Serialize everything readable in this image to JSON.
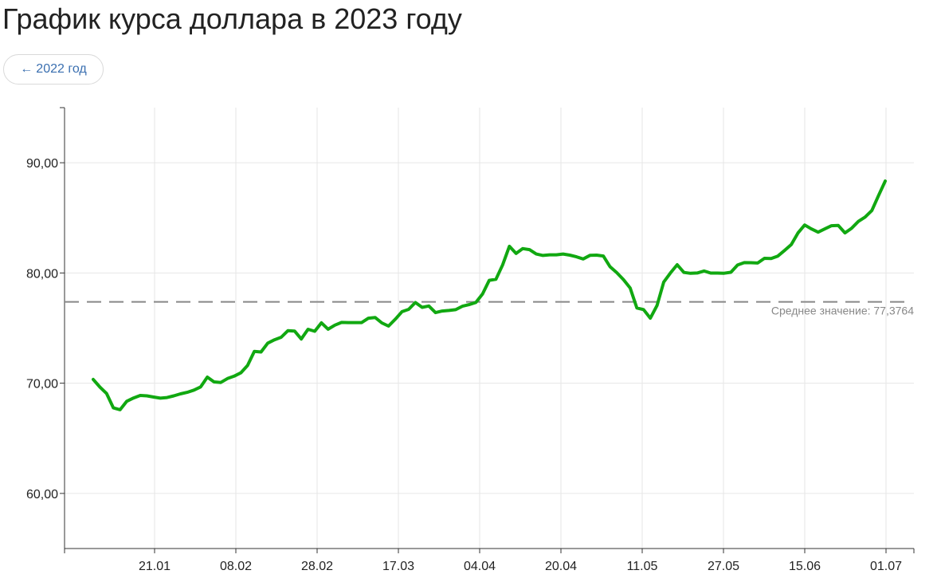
{
  "page": {
    "title": "График курса доллара в 2023 году",
    "back_label": "2022 год",
    "back_arrow": "←"
  },
  "chart_data": {
    "type": "line",
    "title": "",
    "xlabel": "",
    "ylabel": "",
    "ylim": [
      55,
      95
    ],
    "yticks": [
      60,
      70,
      80,
      90
    ],
    "ytick_labels": [
      "60,00",
      "70,00",
      "80,00",
      "90,00"
    ],
    "xticks": [
      "21.01",
      "08.02",
      "28.02",
      "17.03",
      "04.04",
      "20.04",
      "11.05",
      "27.05",
      "15.06",
      "01.07"
    ],
    "grid": true,
    "line_color": "#11a811",
    "average": {
      "value": 77.3764,
      "label": "Среднее значение: 77,3764"
    },
    "series": [
      {
        "values": [
          70.34,
          69.65,
          69.06,
          67.76,
          67.59,
          68.36,
          68.66,
          68.89,
          68.85,
          68.74,
          68.64,
          68.7,
          68.85,
          69.03,
          69.17,
          69.37,
          69.66,
          70.55,
          70.12,
          70.07,
          70.42,
          70.64,
          70.94,
          71.61,
          72.89,
          72.83,
          73.63,
          73.94,
          74.17,
          74.76,
          74.73,
          74.01,
          74.89,
          74.71,
          75.48,
          74.9,
          75.27,
          75.51,
          75.5,
          75.5,
          75.5,
          75.9,
          75.96,
          75.47,
          75.18,
          75.8,
          76.49,
          76.7,
          77.32,
          76.88,
          77.0,
          76.4,
          76.55,
          76.6,
          76.67,
          76.98,
          77.13,
          77.32,
          78.09,
          79.33,
          79.43,
          80.73,
          82.42,
          81.77,
          82.21,
          82.12,
          81.72,
          81.59,
          81.65,
          81.65,
          81.72,
          81.62,
          81.47,
          81.27,
          81.6,
          81.62,
          81.54,
          80.57,
          80.03,
          79.39,
          78.63,
          76.82,
          76.68,
          75.9,
          77.05,
          79.17,
          80.0,
          80.75,
          80.05,
          79.97,
          80.0,
          80.18,
          79.99,
          79.99,
          79.98,
          80.06,
          80.72,
          80.94,
          80.93,
          80.9,
          81.33,
          81.31,
          81.53,
          82.04,
          82.57,
          83.63,
          84.35,
          84.0,
          83.7,
          84.0,
          84.29,
          84.32,
          83.64,
          84.06,
          84.68,
          85.07,
          85.66,
          87.02,
          88.34
        ]
      }
    ]
  }
}
